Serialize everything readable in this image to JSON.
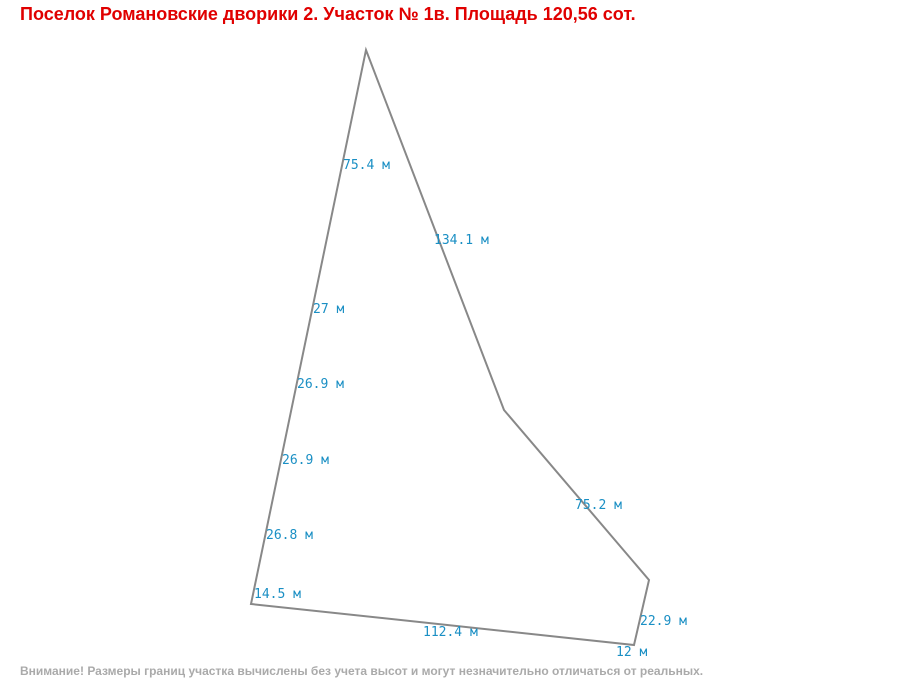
{
  "title": "Поселок Романовские дворики 2. Участок № 1в. Площадь 120,56 сот.",
  "edges": [
    {
      "label": "75.4 м"
    },
    {
      "label": "134.1 м"
    },
    {
      "label": "27 м"
    },
    {
      "label": "26.9 м"
    },
    {
      "label": "26.9 м"
    },
    {
      "label": "26.8 м"
    },
    {
      "label": "14.5 м"
    },
    {
      "label": "112.4 м"
    },
    {
      "label": "75.2 м"
    },
    {
      "label": "22.9 м"
    },
    {
      "label": "12 м"
    }
  ],
  "note": "Внимание! Размеры границ участка вычислены без учета высот и могут незначительно отличаться от реальных."
}
